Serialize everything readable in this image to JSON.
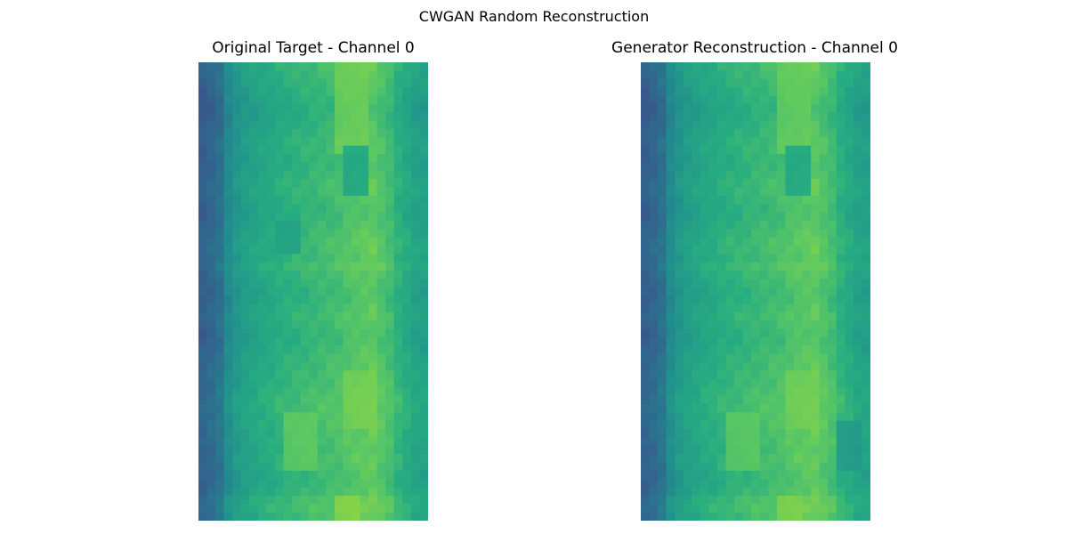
{
  "figure": {
    "suptitle": "CWGAN Random Reconstruction"
  },
  "chart_data": [
    {
      "type": "heatmap",
      "title": "Original Target - Channel 0",
      "colormap": "viridis",
      "axis": "off",
      "value_range": [
        0,
        1
      ],
      "column_profile": [
        0.3,
        0.33,
        0.37,
        0.47,
        0.52,
        0.55,
        0.57,
        0.59,
        0.6,
        0.62,
        0.63,
        0.64,
        0.65,
        0.66,
        0.67,
        0.68,
        0.69,
        0.71,
        0.72,
        0.73,
        0.74,
        0.71,
        0.68,
        0.63,
        0.6,
        0.57,
        0.56
      ],
      "row_profile": [
        0.03,
        0.02,
        0.01,
        0.0,
        -0.01,
        -0.02,
        -0.02,
        -0.01,
        0.0,
        0.01,
        0.01,
        0.0,
        0.0,
        0.01,
        0.02,
        0.02,
        0.01,
        0.0,
        0.0,
        0.01,
        0.02,
        0.03,
        0.03,
        0.02,
        0.04,
        0.02,
        0.01,
        0.0,
        0.0,
        0.01,
        0.02,
        0.01,
        0.0,
        0.0,
        0.01,
        0.02,
        0.02,
        0.03,
        0.03,
        0.04,
        0.05,
        0.05,
        0.04,
        0.04,
        0.03,
        0.03,
        0.02,
        0.03,
        0.02,
        0.01,
        0.01,
        0.02,
        0.05,
        0.06,
        0.04
      ],
      "highlights": [
        {
          "x": [
            16,
            19
          ],
          "y": [
            0,
            10
          ],
          "value": 0.8
        },
        {
          "x": [
            17,
            20
          ],
          "y": [
            37,
            43
          ],
          "value": 0.8
        },
        {
          "x": [
            10,
            13
          ],
          "y": [
            42,
            48
          ],
          "value": 0.78
        },
        {
          "x": [
            16,
            18
          ],
          "y": [
            52,
            55
          ],
          "value": 0.84
        },
        {
          "x": [
            17,
            19
          ],
          "y": [
            10,
            15
          ],
          "value": 0.55
        },
        {
          "x": [
            9,
            11
          ],
          "y": [
            19,
            22
          ],
          "value": 0.55
        }
      ]
    },
    {
      "type": "heatmap",
      "title": "Generator Reconstruction - Channel 0",
      "colormap": "viridis",
      "axis": "off",
      "value_range": [
        0,
        1
      ],
      "column_profile": [
        0.3,
        0.33,
        0.37,
        0.47,
        0.52,
        0.55,
        0.57,
        0.59,
        0.6,
        0.62,
        0.63,
        0.64,
        0.65,
        0.66,
        0.67,
        0.68,
        0.69,
        0.71,
        0.72,
        0.73,
        0.74,
        0.71,
        0.68,
        0.63,
        0.6,
        0.57,
        0.56
      ],
      "row_profile": [
        0.03,
        0.02,
        0.01,
        0.0,
        -0.01,
        -0.02,
        -0.02,
        -0.01,
        0.0,
        0.01,
        0.01,
        0.0,
        0.0,
        0.01,
        0.02,
        0.02,
        0.01,
        0.0,
        0.0,
        0.01,
        0.02,
        0.03,
        0.03,
        0.02,
        0.04,
        0.02,
        0.01,
        0.0,
        0.0,
        0.01,
        0.02,
        0.01,
        0.0,
        0.0,
        0.01,
        0.02,
        0.02,
        0.03,
        0.03,
        0.04,
        0.05,
        0.05,
        0.04,
        0.04,
        0.03,
        0.03,
        0.02,
        0.03,
        0.02,
        0.01,
        0.01,
        0.02,
        0.05,
        0.06,
        0.04
      ],
      "highlights": [
        {
          "x": [
            16,
            19
          ],
          "y": [
            0,
            10
          ],
          "value": 0.78
        },
        {
          "x": [
            17,
            20
          ],
          "y": [
            37,
            43
          ],
          "value": 0.79
        },
        {
          "x": [
            10,
            13
          ],
          "y": [
            42,
            48
          ],
          "value": 0.77
        },
        {
          "x": [
            16,
            18
          ],
          "y": [
            52,
            55
          ],
          "value": 0.82
        },
        {
          "x": [
            17,
            19
          ],
          "y": [
            10,
            15
          ],
          "value": 0.56
        },
        {
          "x": [
            23,
            25
          ],
          "y": [
            43,
            48
          ],
          "value": 0.52
        }
      ]
    }
  ]
}
